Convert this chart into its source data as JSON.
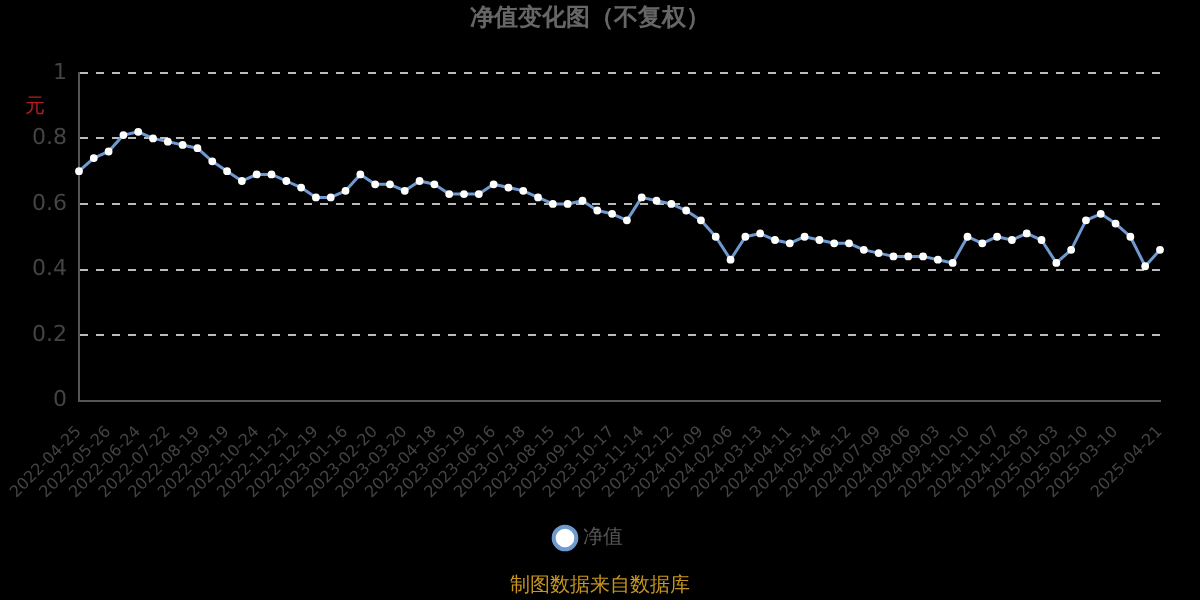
{
  "chart_data": {
    "type": "line",
    "title": "净值变化图（不复权）",
    "ylabel": "元",
    "annotations": [
      "制图数据来自数据库"
    ],
    "categories": [
      "2022-04-25",
      null,
      "2022-05-26",
      null,
      "2022-06-24",
      null,
      "2022-07-22",
      null,
      "2022-08-19",
      null,
      "2022-09-19",
      null,
      "2022-10-24",
      null,
      "2022-11-21",
      null,
      "2022-12-19",
      null,
      "2023-01-16",
      null,
      "2023-02-20",
      null,
      "2023-03-20",
      null,
      "2023-04-18",
      null,
      "2023-05-19",
      null,
      "2023-06-16",
      null,
      "2023-07-18",
      null,
      "2023-08-15",
      null,
      "2023-09-12",
      null,
      "2023-10-17",
      null,
      "2023-11-14",
      null,
      "2023-12-12",
      null,
      "2024-01-09",
      null,
      "2024-02-06",
      null,
      "2024-03-13",
      null,
      "2024-04-11",
      null,
      "2024-05-14",
      null,
      "2024-06-12",
      null,
      "2024-07-09",
      null,
      "2024-08-06",
      null,
      "2024-09-03",
      null,
      "2024-10-10",
      null,
      "2024-11-07",
      null,
      "2024-12-05",
      null,
      "2025-01-03",
      null,
      "2025-02-10",
      null,
      "2025-03-10",
      null,
      null,
      "2025-04-21"
    ],
    "series": [
      {
        "name": "净值",
        "color": "#6f9ad0",
        "values": [
          0.7,
          0.74,
          0.76,
          0.81,
          0.82,
          0.8,
          0.79,
          0.78,
          0.77,
          0.73,
          0.7,
          0.67,
          0.69,
          0.69,
          0.67,
          0.65,
          0.62,
          0.62,
          0.64,
          0.69,
          0.66,
          0.66,
          0.64,
          0.67,
          0.66,
          0.63,
          0.63,
          0.63,
          0.66,
          0.65,
          0.64,
          0.62,
          0.6,
          0.6,
          0.61,
          0.58,
          0.57,
          0.55,
          0.62,
          0.61,
          0.6,
          0.58,
          0.55,
          0.5,
          0.43,
          0.5,
          0.51,
          0.49,
          0.48,
          0.5,
          0.49,
          0.48,
          0.48,
          0.46,
          0.45,
          0.44,
          0.44,
          0.44,
          0.43,
          0.42,
          0.5,
          0.48,
          0.5,
          0.49,
          0.51,
          0.49,
          0.42,
          0.46,
          0.55,
          0.57,
          0.54,
          0.5,
          0.41,
          0.46
        ]
      }
    ],
    "ylim": [
      0,
      1
    ],
    "yticks": [
      0,
      0.2,
      0.4,
      0.6,
      0.8,
      1
    ],
    "grid": "y",
    "legend": "bottom",
    "marker": "circle",
    "line_style": "solid"
  }
}
